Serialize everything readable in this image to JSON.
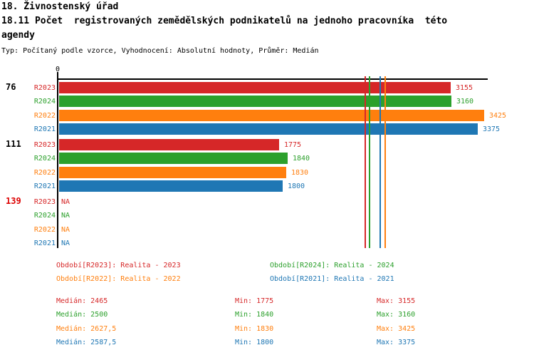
{
  "header": {
    "title": "18. Živnostenský úřad",
    "subtitle_lines": [
      "18.11 Počet  registrovaných zemědělských podnikatelů na jednoho pracovníka  této",
      "agendy"
    ],
    "meta": "Typ: Počítaný podle vzorce, Vyhodnocení: Absolutní hodnoty, Průměr: Medián"
  },
  "chart_data": {
    "type": "bar",
    "orientation": "horizontal",
    "title": "18.11 Počet registrovaných zemědělských podnikatelů na jednoho pracovníka této agendy",
    "xlim": [
      0,
      3450
    ],
    "origin_tick_label": "0",
    "grid": false,
    "na_text": "NA",
    "series": [
      {
        "key": "R2023",
        "color": "#d62728",
        "legend": "Období[R2023]: Realita - 2023",
        "median": 2465,
        "median_display": "2465",
        "min": 1775,
        "max": 3155
      },
      {
        "key": "R2024",
        "color": "#2ca02c",
        "legend": "Období[R2024]: Realita - 2024",
        "median": 2500,
        "median_display": "2500",
        "min": 1840,
        "max": 3160
      },
      {
        "key": "R2022",
        "color": "#ff7f0e",
        "legend": "Období[R2022]: Realita - 2022",
        "median": 2627.5,
        "median_display": "2627,5",
        "min": 1830,
        "max": 3425
      },
      {
        "key": "R2021",
        "color": "#1f77b4",
        "legend": "Období[R2021]: Realita - 2021",
        "median": 2587.5,
        "median_display": "2587,5",
        "min": 1800,
        "max": 3375
      }
    ],
    "groups": [
      {
        "label": "76",
        "label_color": "#000000",
        "values": [
          3155,
          3160,
          3425,
          3375
        ]
      },
      {
        "label": "111",
        "label_color": "#000000",
        "values": [
          1775,
          1840,
          1830,
          1800
        ]
      },
      {
        "label": "139",
        "label_color": "#dd0000",
        "values": [
          null,
          null,
          null,
          null
        ]
      }
    ]
  },
  "stats_labels": {
    "median": "Medián",
    "min": "Min",
    "max": "Max"
  }
}
